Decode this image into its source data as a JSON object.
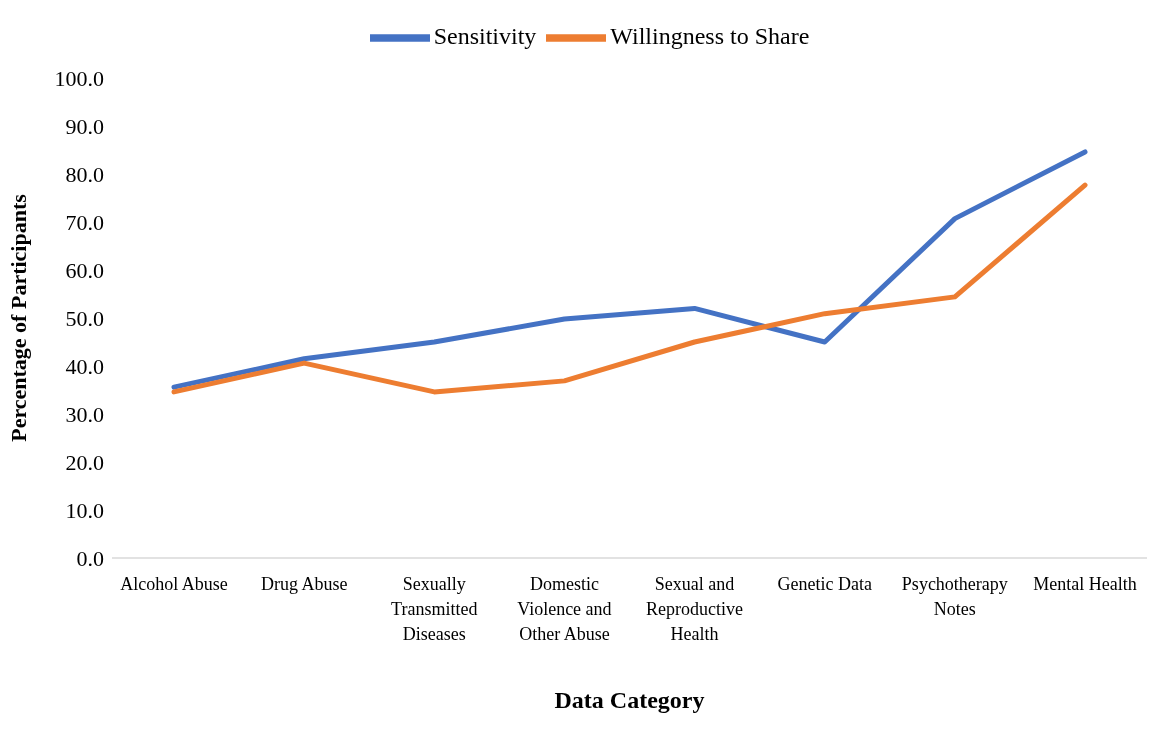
{
  "chart_data": {
    "type": "line",
    "xlabel": "Data Category",
    "ylabel": "Percentage of Participants",
    "categories": [
      "Alcohol Abuse",
      "Drug Abuse",
      "Sexually Transmitted Diseases",
      "Domestic Violence and Other Abuse",
      "Sexual and Reproductive Health",
      "Genetic Data",
      "Psychotherapy Notes",
      "Mental Health"
    ],
    "series": [
      {
        "name": "Sensitivity",
        "color": "#4472c4",
        "values": [
          35.6,
          41.5,
          45.0,
          49.8,
          52.0,
          45.0,
          70.7,
          84.6
        ]
      },
      {
        "name": "Willingness to Share",
        "color": "#ed7d31",
        "values": [
          34.6,
          40.6,
          34.6,
          36.9,
          45.0,
          50.9,
          54.4,
          77.7
        ]
      }
    ],
    "ylim": [
      0,
      100
    ],
    "yticks": [
      {
        "value": 0,
        "label": "0.0"
      },
      {
        "value": 10,
        "label": "10.0"
      },
      {
        "value": 20,
        "label": "20.0"
      },
      {
        "value": 30,
        "label": "30.0"
      },
      {
        "value": 40,
        "label": "40.0"
      },
      {
        "value": 50,
        "label": "50.0"
      },
      {
        "value": 60,
        "label": "60.0"
      },
      {
        "value": 70,
        "label": "70.0"
      },
      {
        "value": 80,
        "label": "80.0"
      },
      {
        "value": 90,
        "label": "90.0"
      },
      {
        "value": 100,
        "label": "100.0"
      }
    ],
    "grid": false,
    "legend": "top",
    "marker": "none",
    "line_style": "solid"
  }
}
